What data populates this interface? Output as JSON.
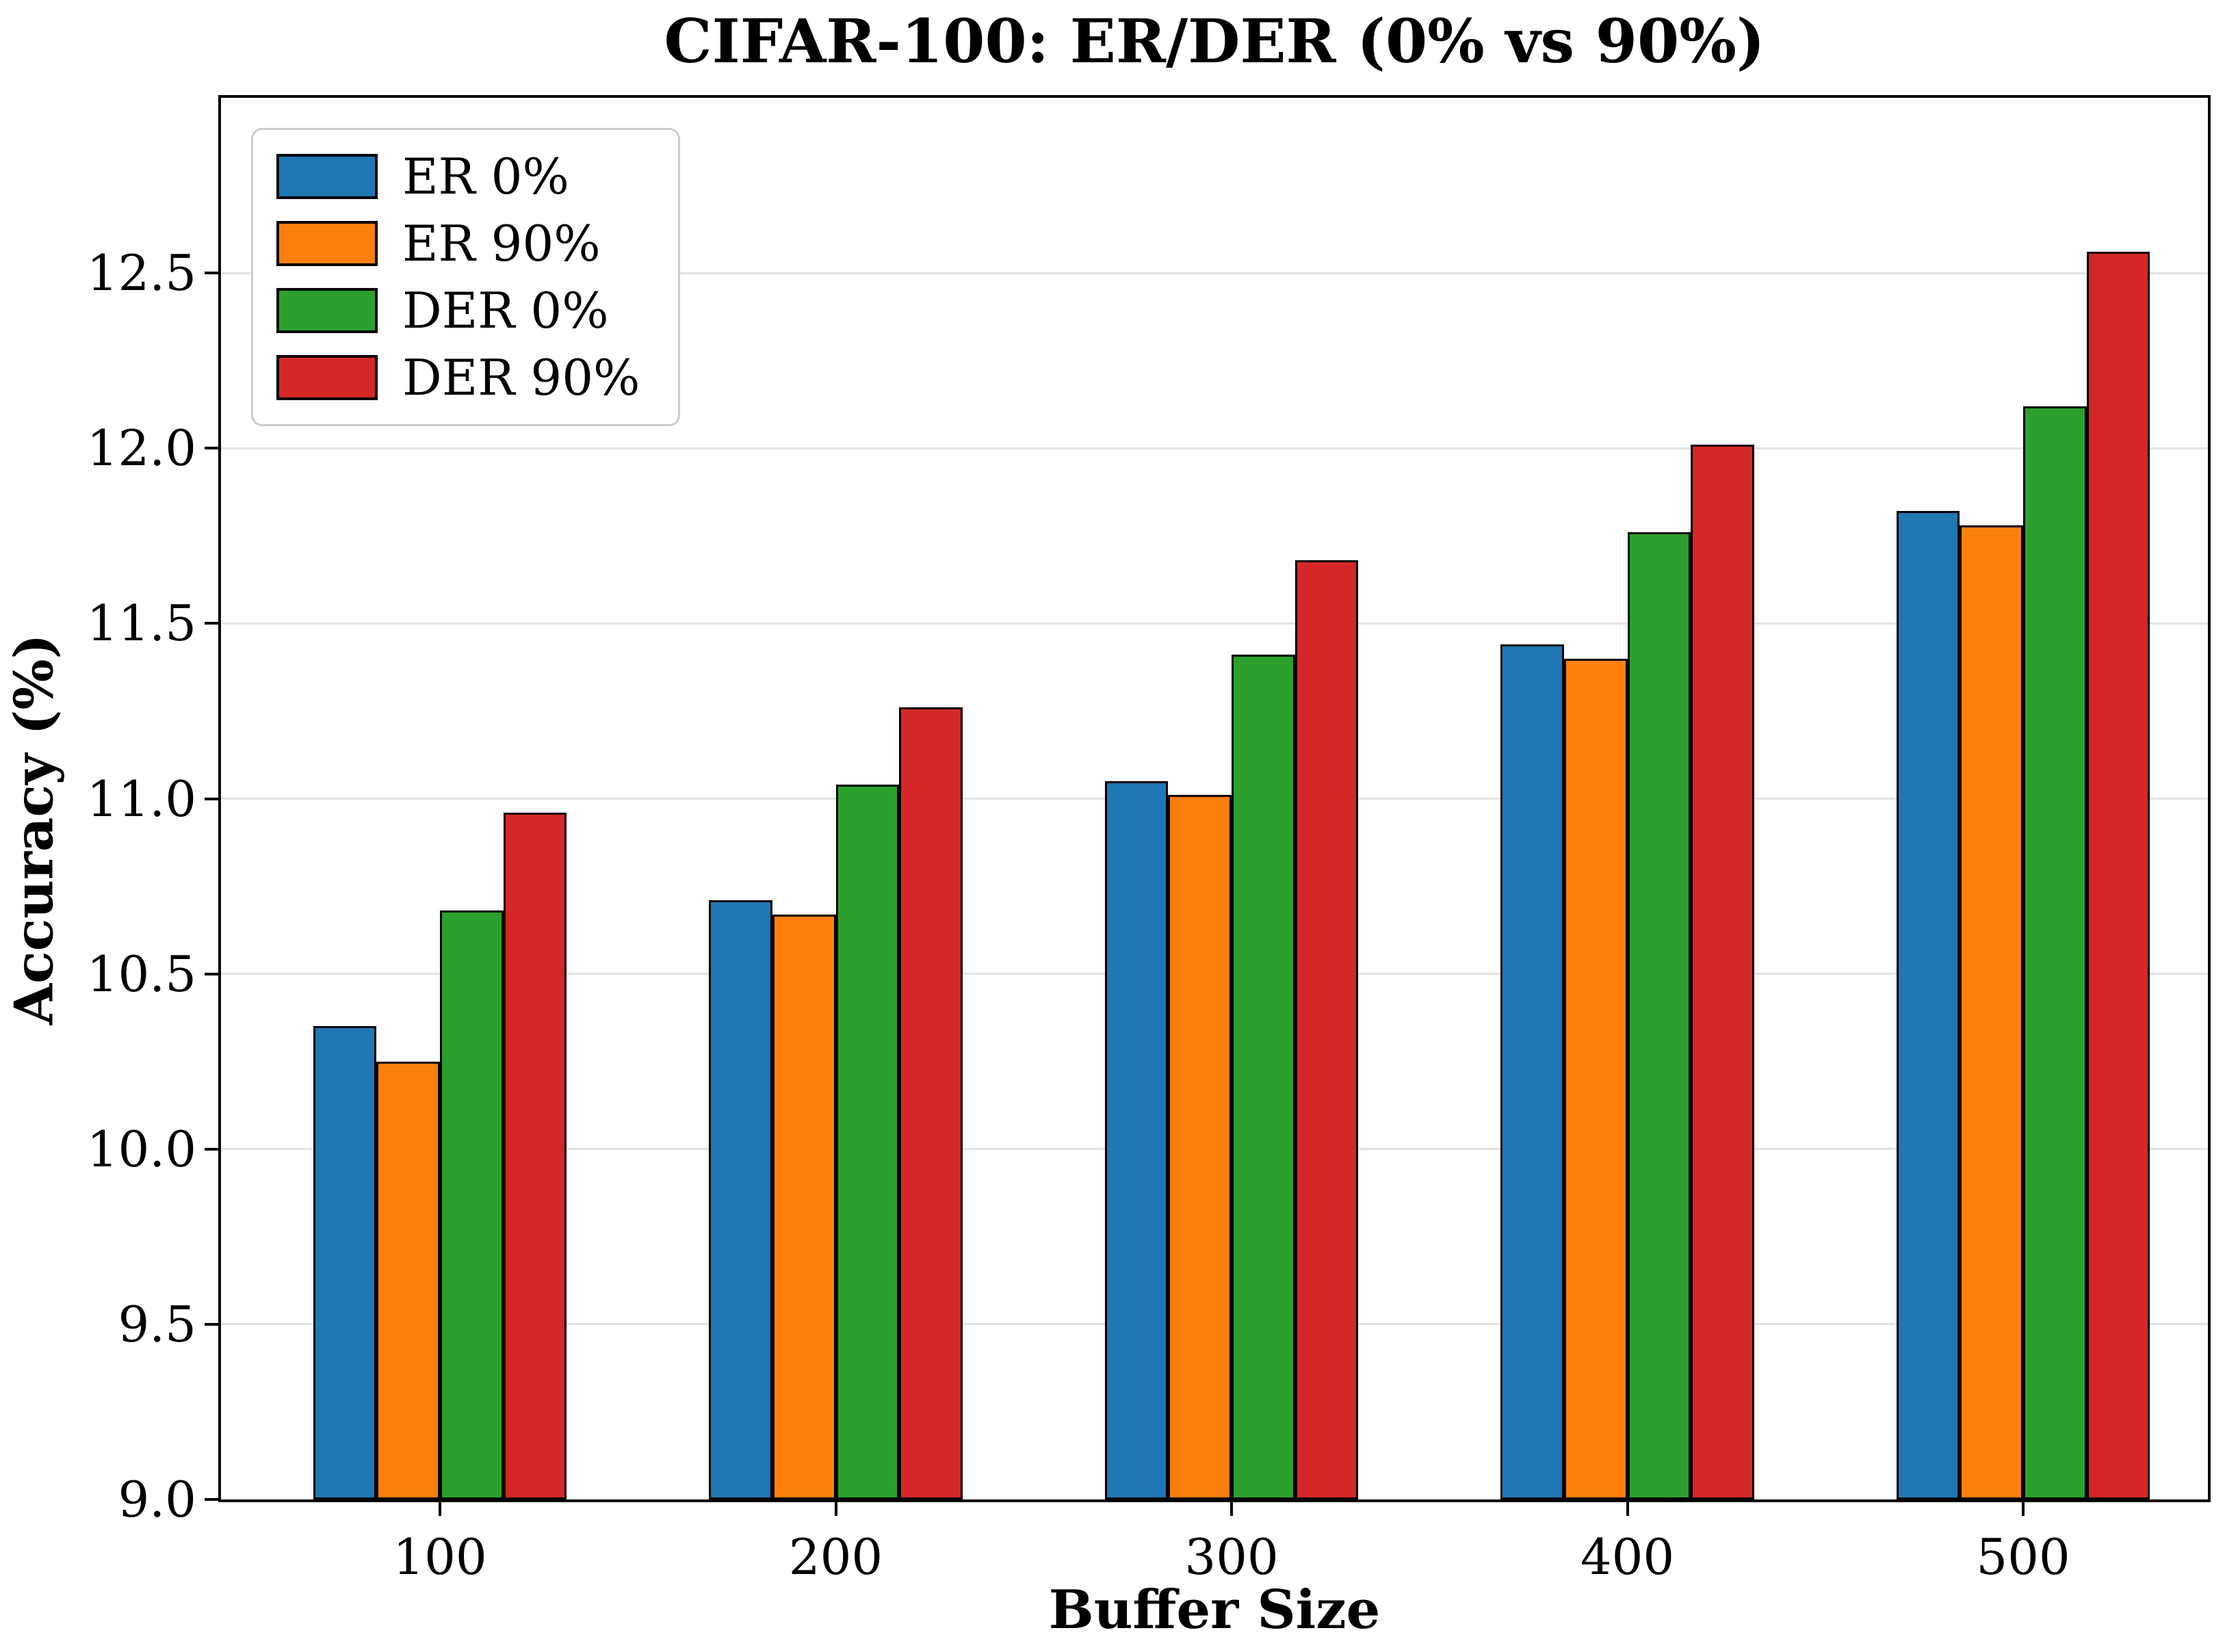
{
  "chart_data": {
    "type": "bar",
    "title": "CIFAR-100: ER/DER (0% vs 90%)",
    "xlabel": "Buffer Size",
    "ylabel": "Accuracy (%)",
    "categories": [
      "100",
      "200",
      "300",
      "400",
      "500"
    ],
    "series": [
      {
        "name": "ER 0%",
        "color": "#1f77b4",
        "values": [
          10.35,
          10.71,
          11.05,
          11.44,
          11.82
        ]
      },
      {
        "name": "ER 90%",
        "color": "#ff7f0e",
        "values": [
          10.25,
          10.67,
          11.01,
          11.4,
          11.78
        ]
      },
      {
        "name": "DER 0%",
        "color": "#2ca02c",
        "values": [
          10.68,
          11.04,
          11.41,
          11.76,
          12.12
        ]
      },
      {
        "name": "DER 90%",
        "color": "#d62728",
        "values": [
          10.96,
          11.26,
          11.68,
          12.01,
          12.56
        ]
      }
    ],
    "ylim": [
      9.0,
      13.0
    ],
    "y_ticks": [
      "9.0",
      "9.5",
      "10.0",
      "10.5",
      "11.0",
      "11.5",
      "12.0",
      "12.5"
    ],
    "grid": true,
    "grid_color": "#e3e3e3",
    "bar_edge_color": "#000000",
    "legend_position": "upper left"
  }
}
